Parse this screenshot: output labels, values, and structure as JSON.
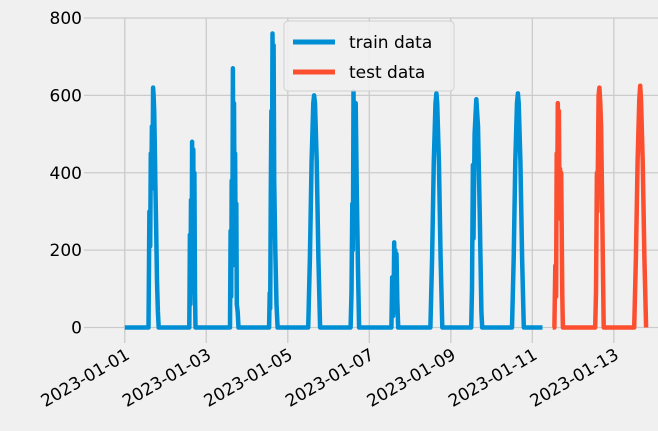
{
  "chart_data": {
    "type": "line",
    "title": "",
    "xlabel": "",
    "ylabel": "",
    "x_unit": "date",
    "xlim": [
      "2022-12-31T00:00",
      "2023-01-14T02:00"
    ],
    "ylim": [
      -40,
      800
    ],
    "x_ticks": [
      "2023-01-01",
      "2023-01-03",
      "2023-01-05",
      "2023-01-07",
      "2023-01-09",
      "2023-01-11",
      "2023-01-13"
    ],
    "y_ticks": [
      0,
      200,
      400,
      600,
      800
    ],
    "grid": true,
    "legend": {
      "placement": "top-center"
    },
    "series": [
      {
        "name": "train data",
        "color": "#008fd5",
        "points": [
          [
            "2023-01-01T00:00",
            0
          ],
          [
            "2023-01-01T14:00",
            0
          ],
          [
            "2023-01-01T14:30",
            300
          ],
          [
            "2023-01-01T15:00",
            210
          ],
          [
            "2023-01-01T15:20",
            450
          ],
          [
            "2023-01-01T15:40",
            380
          ],
          [
            "2023-01-01T16:00",
            520
          ],
          [
            "2023-01-01T16:20",
            360
          ],
          [
            "2023-01-01T16:40",
            620
          ],
          [
            "2023-01-01T17:00",
            600
          ],
          [
            "2023-01-01T17:20",
            560
          ],
          [
            "2023-01-01T17:40",
            470
          ],
          [
            "2023-01-01T18:00",
            380
          ],
          [
            "2023-01-01T18:30",
            250
          ],
          [
            "2023-01-01T19:00",
            120
          ],
          [
            "2023-01-01T19:30",
            40
          ],
          [
            "2023-01-01T20:00",
            0
          ],
          [
            "2023-01-02T14:00",
            0
          ],
          [
            "2023-01-02T14:20",
            240
          ],
          [
            "2023-01-02T14:40",
            60
          ],
          [
            "2023-01-02T15:00",
            330
          ],
          [
            "2023-01-02T15:20",
            90
          ],
          [
            "2023-01-02T15:40",
            480
          ],
          [
            "2023-01-02T16:00",
            120
          ],
          [
            "2023-01-02T16:20",
            460
          ],
          [
            "2023-01-02T16:40",
            100
          ],
          [
            "2023-01-02T17:00",
            400
          ],
          [
            "2023-01-02T17:20",
            90
          ],
          [
            "2023-01-02T17:40",
            0
          ],
          [
            "2023-01-03T14:00",
            0
          ],
          [
            "2023-01-03T14:20",
            250
          ],
          [
            "2023-01-03T14:40",
            80
          ],
          [
            "2023-01-03T15:00",
            380
          ],
          [
            "2023-01-03T15:20",
            160
          ],
          [
            "2023-01-03T15:40",
            670
          ],
          [
            "2023-01-03T16:00",
            220
          ],
          [
            "2023-01-03T16:20",
            580
          ],
          [
            "2023-01-03T16:40",
            250
          ],
          [
            "2023-01-03T17:00",
            450
          ],
          [
            "2023-01-03T17:20",
            180
          ],
          [
            "2023-01-03T17:40",
            320
          ],
          [
            "2023-01-03T18:00",
            60
          ],
          [
            "2023-01-03T18:30",
            40
          ],
          [
            "2023-01-03T19:00",
            0
          ],
          [
            "2023-01-04T13:00",
            0
          ],
          [
            "2023-01-04T13:20",
            90
          ],
          [
            "2023-01-04T13:40",
            50
          ],
          [
            "2023-01-04T14:00",
            350
          ],
          [
            "2023-01-04T14:20",
            560
          ],
          [
            "2023-01-04T14:40",
            320
          ],
          [
            "2023-01-04T15:00",
            760
          ],
          [
            "2023-01-04T15:20",
            330
          ],
          [
            "2023-01-04T15:40",
            730
          ],
          [
            "2023-01-04T16:00",
            380
          ],
          [
            "2023-01-04T16:40",
            200
          ],
          [
            "2023-01-04T17:20",
            60
          ],
          [
            "2023-01-04T18:00",
            0
          ],
          [
            "2023-01-05T12:00",
            0
          ],
          [
            "2023-01-05T13:00",
            180
          ],
          [
            "2023-01-05T14:00",
            430
          ],
          [
            "2023-01-05T15:00",
            580
          ],
          [
            "2023-01-05T15:30",
            600
          ],
          [
            "2023-01-05T16:00",
            580
          ],
          [
            "2023-01-05T17:00",
            430
          ],
          [
            "2023-01-05T18:00",
            180
          ],
          [
            "2023-01-05T19:00",
            0
          ],
          [
            "2023-01-06T13:00",
            0
          ],
          [
            "2023-01-06T13:30",
            90
          ],
          [
            "2023-01-06T14:00",
            320
          ],
          [
            "2023-01-06T14:20",
            200
          ],
          [
            "2023-01-06T14:40",
            610
          ],
          [
            "2023-01-06T15:00",
            500
          ],
          [
            "2023-01-06T15:20",
            560
          ],
          [
            "2023-01-06T15:40",
            300
          ],
          [
            "2023-01-06T16:00",
            580
          ],
          [
            "2023-01-06T16:40",
            350
          ],
          [
            "2023-01-06T17:20",
            150
          ],
          [
            "2023-01-06T18:00",
            0
          ],
          [
            "2023-01-07T13:00",
            0
          ],
          [
            "2023-01-07T13:30",
            130
          ],
          [
            "2023-01-07T14:00",
            30
          ],
          [
            "2023-01-07T14:20",
            60
          ],
          [
            "2023-01-07T14:40",
            220
          ],
          [
            "2023-01-07T15:00",
            40
          ],
          [
            "2023-01-07T15:20",
            200
          ],
          [
            "2023-01-07T15:40",
            120
          ],
          [
            "2023-01-07T16:00",
            190
          ],
          [
            "2023-01-07T16:30",
            70
          ],
          [
            "2023-01-07T17:00",
            0
          ],
          [
            "2023-01-08T12:00",
            0
          ],
          [
            "2023-01-08T13:00",
            180
          ],
          [
            "2023-01-08T14:00",
            430
          ],
          [
            "2023-01-08T15:00",
            580
          ],
          [
            "2023-01-08T15:30",
            605
          ],
          [
            "2023-01-08T16:00",
            580
          ],
          [
            "2023-01-08T17:00",
            430
          ],
          [
            "2023-01-08T18:00",
            180
          ],
          [
            "2023-01-08T19:00",
            0
          ],
          [
            "2023-01-09T12:00",
            0
          ],
          [
            "2023-01-09T12:30",
            100
          ],
          [
            "2023-01-09T13:00",
            420
          ],
          [
            "2023-01-09T13:20",
            230
          ],
          [
            "2023-01-09T14:00",
            500
          ],
          [
            "2023-01-09T15:00",
            590
          ],
          [
            "2023-01-09T16:00",
            520
          ],
          [
            "2023-01-09T17:00",
            300
          ],
          [
            "2023-01-09T18:00",
            40
          ],
          [
            "2023-01-09T18:30",
            0
          ],
          [
            "2023-01-10T12:00",
            0
          ],
          [
            "2023-01-10T13:00",
            180
          ],
          [
            "2023-01-10T14:00",
            430
          ],
          [
            "2023-01-10T15:00",
            580
          ],
          [
            "2023-01-10T15:30",
            605
          ],
          [
            "2023-01-10T16:00",
            580
          ],
          [
            "2023-01-10T17:00",
            430
          ],
          [
            "2023-01-10T18:00",
            180
          ],
          [
            "2023-01-10T19:00",
            0
          ],
          [
            "2023-01-11T00:00",
            0
          ],
          [
            "2023-01-11T06:00",
            0
          ]
        ]
      },
      {
        "name": "test data",
        "color": "#fc4f30",
        "points": [
          [
            "2023-01-11T12:00",
            0
          ],
          [
            "2023-01-11T13:00",
            0
          ],
          [
            "2023-01-11T13:30",
            160
          ],
          [
            "2023-01-11T14:00",
            80
          ],
          [
            "2023-01-11T14:20",
            450
          ],
          [
            "2023-01-11T14:40",
            320
          ],
          [
            "2023-01-11T15:00",
            580
          ],
          [
            "2023-01-11T15:20",
            440
          ],
          [
            "2023-01-11T15:40",
            560
          ],
          [
            "2023-01-11T16:00",
            290
          ],
          [
            "2023-01-11T16:20",
            410
          ],
          [
            "2023-01-11T16:40",
            280
          ],
          [
            "2023-01-11T17:00",
            400
          ],
          [
            "2023-01-11T17:40",
            80
          ],
          [
            "2023-01-11T18:00",
            0
          ],
          [
            "2023-01-12T13:00",
            0
          ],
          [
            "2023-01-12T13:30",
            90
          ],
          [
            "2023-01-12T14:00",
            400
          ],
          [
            "2023-01-12T14:20",
            300
          ],
          [
            "2023-01-12T15:00",
            600
          ],
          [
            "2023-01-12T15:30",
            620
          ],
          [
            "2023-01-12T16:00",
            580
          ],
          [
            "2023-01-12T16:30",
            520
          ],
          [
            "2023-01-12T17:00",
            350
          ],
          [
            "2023-01-12T17:40",
            120
          ],
          [
            "2023-01-12T18:00",
            0
          ],
          [
            "2023-01-13T12:00",
            0
          ],
          [
            "2023-01-13T13:00",
            180
          ],
          [
            "2023-01-13T14:00",
            430
          ],
          [
            "2023-01-13T15:00",
            590
          ],
          [
            "2023-01-13T15:30",
            625
          ],
          [
            "2023-01-13T16:00",
            590
          ],
          [
            "2023-01-13T17:00",
            430
          ],
          [
            "2023-01-13T18:00",
            180
          ],
          [
            "2023-01-13T19:00",
            0
          ]
        ]
      }
    ]
  }
}
